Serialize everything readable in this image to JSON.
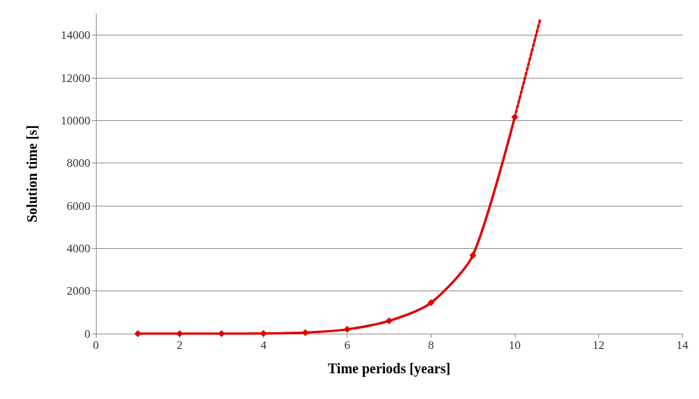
{
  "chart_data": {
    "type": "line",
    "xlabel": "Time periods [years]",
    "ylabel": "Solution time [s]",
    "xlim": [
      0,
      14
    ],
    "xticks": [
      0,
      2,
      4,
      6,
      8,
      10,
      12,
      14
    ],
    "ylim": [
      0,
      15000
    ],
    "yticks": [
      0,
      2000,
      4000,
      6000,
      8000,
      10000,
      12000,
      14000
    ],
    "grid": "y",
    "series": [
      {
        "color": "#e00000",
        "x": [
          1,
          2,
          3,
          4,
          5,
          6,
          7,
          8,
          9,
          10
        ],
        "values": [
          0,
          0,
          0,
          10,
          50,
          200,
          600,
          1450,
          3680,
          10160
        ],
        "marker": "diamond",
        "line_style": "solid"
      },
      {
        "color": "#e00000",
        "x": [
          10,
          10.6
        ],
        "values": [
          10160,
          14700
        ],
        "marker": "none",
        "line_style": "dotted"
      }
    ]
  }
}
